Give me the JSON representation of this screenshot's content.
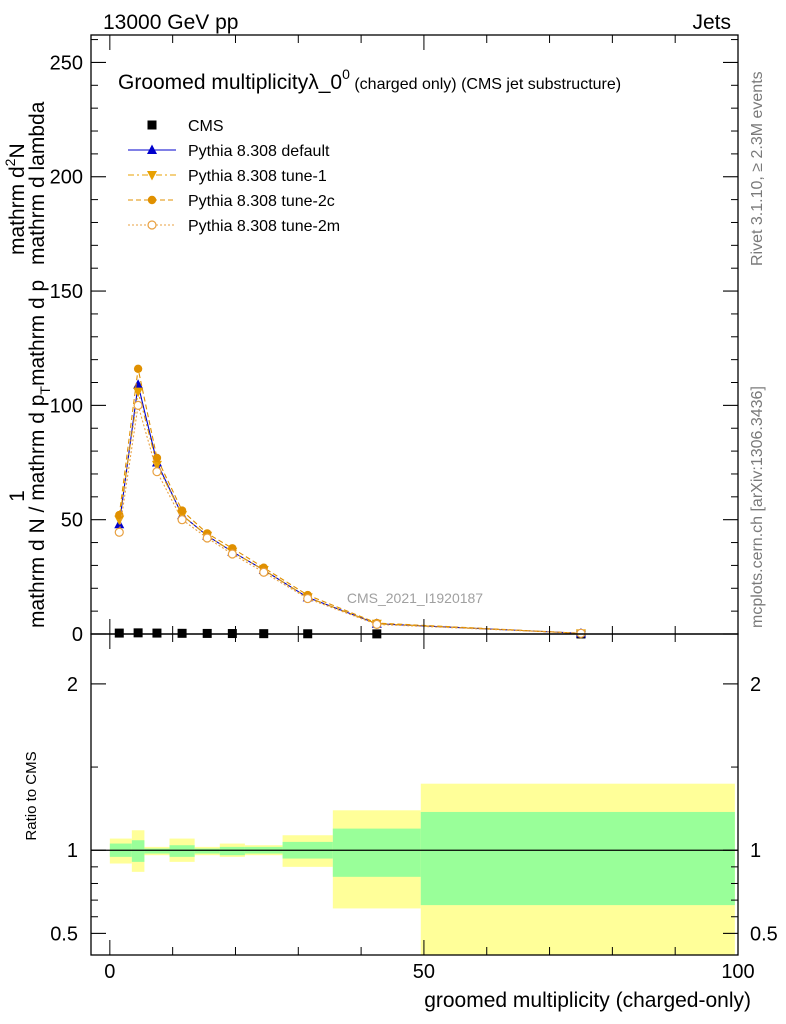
{
  "header": {
    "energy_label": "13000 GeV pp",
    "category_label": "Jets"
  },
  "side_labels": {
    "rivet": "Rivet 3.1.10, ≥ 2.3M events",
    "source": "mcplots.cern.ch [arXiv:1306.3436]"
  },
  "watermark": "CMS_2021_I1920187",
  "chart_data": [
    {
      "type": "line",
      "title_main": "Groomed multiplicityλ_0",
      "title_sup": "0",
      "title_note": "(charged only) (CMS jet substructure)",
      "ylabel_top": "1",
      "ylabel_bottom": "mathrm d N / mathrm d p",
      "ylabel_sub": "T",
      "ylabel_bottom_rest": "mathrm d p",
      "ylabel_num": "mathrm d",
      "ylabel_num_sup": "2",
      "ylabel_num_rest": "N",
      "ylabel_den": "mathrm d lambda",
      "xlim": [
        -3,
        100
      ],
      "ylim": [
        0,
        262
      ],
      "yticks": [
        0,
        50,
        100,
        150,
        200,
        250
      ],
      "ytick_labels": [
        "0",
        "50",
        "100",
        "150",
        "200",
        "250"
      ],
      "legend": "top-left",
      "series": [
        {
          "name": "CMS",
          "color": "#000000",
          "marker": "square",
          "x": [
            1.5,
            4.5,
            7.5,
            11.5,
            15.5,
            19.5,
            24.5,
            31.5,
            42.5,
            75
          ],
          "y": [
            0.4,
            0.5,
            0.4,
            0.3,
            0.25,
            0.2,
            0.15,
            0.1,
            0.05,
            0.01
          ]
        },
        {
          "name": "Pythia 8.308 default",
          "color": "#0000cc",
          "marker": "triangle-up",
          "dash": "",
          "x": [
            1.5,
            4.5,
            7.5,
            11.5,
            15.5,
            19.5,
            24.5,
            31.5,
            42.5,
            75
          ],
          "y": [
            48,
            109,
            75,
            52,
            43,
            36,
            28,
            16,
            4.5,
            0.3
          ]
        },
        {
          "name": "Pythia 8.308 tune-1",
          "color": "#e8a000",
          "marker": "triangle-down",
          "dash": "6,3,2,3",
          "x": [
            1.5,
            4.5,
            7.5,
            11.5,
            15.5,
            19.5,
            24.5,
            31.5,
            42.5,
            75
          ],
          "y": [
            50,
            106,
            74,
            52,
            43,
            36,
            28,
            16,
            4.5,
            0.3
          ]
        },
        {
          "name": "Pythia 8.308 tune-2c",
          "color": "#e09000",
          "marker": "circle",
          "dash": "5,3",
          "x": [
            1.5,
            4.5,
            7.5,
            11.5,
            15.5,
            19.5,
            24.5,
            31.5,
            42.5,
            75
          ],
          "y": [
            52,
            116,
            77,
            54,
            44,
            37.5,
            29,
            17,
            4.8,
            0.3
          ]
        },
        {
          "name": "Pythia 8.308 tune-2m",
          "color": "#e8a040",
          "marker": "circle-open",
          "dash": "2,2",
          "x": [
            1.5,
            4.5,
            7.5,
            11.5,
            15.5,
            19.5,
            24.5,
            31.5,
            42.5,
            75
          ],
          "y": [
            44.5,
            100,
            71,
            50,
            42,
            35,
            27,
            15.5,
            4.2,
            0.3
          ]
        }
      ]
    },
    {
      "type": "area",
      "ylabel": "Ratio to CMS",
      "xlabel": "groomed multiplicity (charged-only)",
      "xlim": [
        -3,
        100
      ],
      "ylim": [
        0.37,
        2.3
      ],
      "xticks": [
        0,
        50,
        100
      ],
      "xtick_labels": [
        "0",
        "50",
        "100"
      ],
      "yticks": [
        0.5,
        1,
        2
      ],
      "ytick_labels": [
        "0.5",
        "1",
        "2"
      ],
      "bins": [
        {
          "lo": 0,
          "hi": 3.5,
          "stat": [
            0.96,
            1.04
          ],
          "total": [
            0.92,
            1.07
          ]
        },
        {
          "lo": 3.5,
          "hi": 5.5,
          "stat": [
            0.93,
            1.06
          ],
          "total": [
            0.87,
            1.12
          ]
        },
        {
          "lo": 5.5,
          "hi": 9.5,
          "stat": [
            0.98,
            1.01
          ],
          "total": [
            0.97,
            1.02
          ]
        },
        {
          "lo": 9.5,
          "hi": 13.5,
          "stat": [
            0.96,
            1.03
          ],
          "total": [
            0.93,
            1.07
          ]
        },
        {
          "lo": 13.5,
          "hi": 17.5,
          "stat": [
            0.98,
            1.01
          ],
          "total": [
            0.97,
            1.02
          ]
        },
        {
          "lo": 17.5,
          "hi": 21.5,
          "stat": [
            0.97,
            1.02
          ],
          "total": [
            0.96,
            1.04
          ]
        },
        {
          "lo": 21.5,
          "hi": 27.5,
          "stat": [
            0.98,
            1.02
          ],
          "total": [
            0.97,
            1.03
          ]
        },
        {
          "lo": 27.5,
          "hi": 35.5,
          "stat": [
            0.95,
            1.05
          ],
          "total": [
            0.9,
            1.09
          ]
        },
        {
          "lo": 35.5,
          "hi": 49.5,
          "stat": [
            0.84,
            1.13
          ],
          "total": [
            0.65,
            1.24
          ]
        },
        {
          "lo": 49.5,
          "hi": 99.5,
          "stat": [
            0.67,
            1.23
          ],
          "total": [
            0.37,
            1.4
          ]
        }
      ],
      "colors": {
        "stat": "#99ff99",
        "total": "#ffff99"
      }
    }
  ]
}
